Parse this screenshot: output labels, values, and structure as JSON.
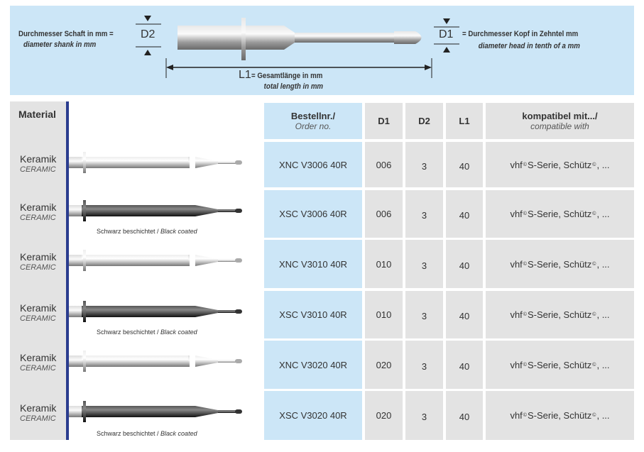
{
  "diagram": {
    "d2_label": "D2",
    "d2_de": "Durchmesser Schaft in mm =",
    "d2_en": "diameter shank in mm",
    "d1_label": "D1",
    "d1_de": "= Durchmesser Kopf in Zehntel mm",
    "d1_en": "diameter head in tenth of a mm",
    "l1_label": "L1",
    "l1_de": "= Gesamtlänge in mm",
    "l1_en": "total length in mm"
  },
  "material_header": "Material",
  "table": {
    "headers": [
      {
        "de": "Bestellnr./",
        "en": "Order no."
      },
      {
        "de": "D1"
      },
      {
        "de": "D2"
      },
      {
        "de": "L1"
      },
      {
        "de": "kompatibel mit.../",
        "en": "compatible with"
      }
    ],
    "rows": [
      {
        "material": "Keramik",
        "material_en": "CERAMIC",
        "coating": "silver",
        "note": "",
        "order": "XNC V3006 40R",
        "d1": "006",
        "d2": "3",
        "l1": "40",
        "compat_a": "vhf",
        "compat_b": "S-Serie, Schütz",
        "compat_c": ", ..."
      },
      {
        "material": "Keramik",
        "material_en": "CERAMIC",
        "coating": "black",
        "note": "Schwarz beschichtet / ",
        "note_en": "Black coated",
        "order": "XSC V3006 40R",
        "d1": "006",
        "d2": "3",
        "l1": "40",
        "compat_a": "vhf",
        "compat_b": "S-Serie, Schütz",
        "compat_c": ", ..."
      },
      {
        "material": "Keramik",
        "material_en": "CERAMIC",
        "coating": "silver",
        "note": "",
        "order": "XNC V3010 40R",
        "d1": "010",
        "d2": "3",
        "l1": "40",
        "compat_a": "vhf",
        "compat_b": "S-Serie, Schütz",
        "compat_c": ", ..."
      },
      {
        "material": "Keramik",
        "material_en": "CERAMIC",
        "coating": "black",
        "note": "Schwarz beschichtet / ",
        "note_en": "Black coated",
        "order": "XSC V3010 40R",
        "d1": "010",
        "d2": "3",
        "l1": "40",
        "compat_a": "vhf",
        "compat_b": "S-Serie, Schütz",
        "compat_c": ", ..."
      },
      {
        "material": "Keramik",
        "material_en": "CERAMIC",
        "coating": "silver",
        "note": "",
        "order": "XNC V3020 40R",
        "d1": "020",
        "d2": "3",
        "l1": "40",
        "compat_a": "vhf",
        "compat_b": "S-Serie, Schütz",
        "compat_c": ", ..."
      },
      {
        "material": "Keramik",
        "material_en": "CERAMIC",
        "coating": "black",
        "note": "Schwarz beschichtet / ",
        "note_en": "Black coated",
        "order": "XSC V3020 40R",
        "d1": "020",
        "d2": "3",
        "l1": "40",
        "compat_a": "vhf",
        "compat_b": "S-Serie, Schütz",
        "compat_c": ", ..."
      }
    ]
  },
  "registered_mark": "©",
  "colors": {
    "banner": "#cce6f7",
    "cell": "#e3e3e3",
    "accent_bar": "#2b3d8f"
  }
}
